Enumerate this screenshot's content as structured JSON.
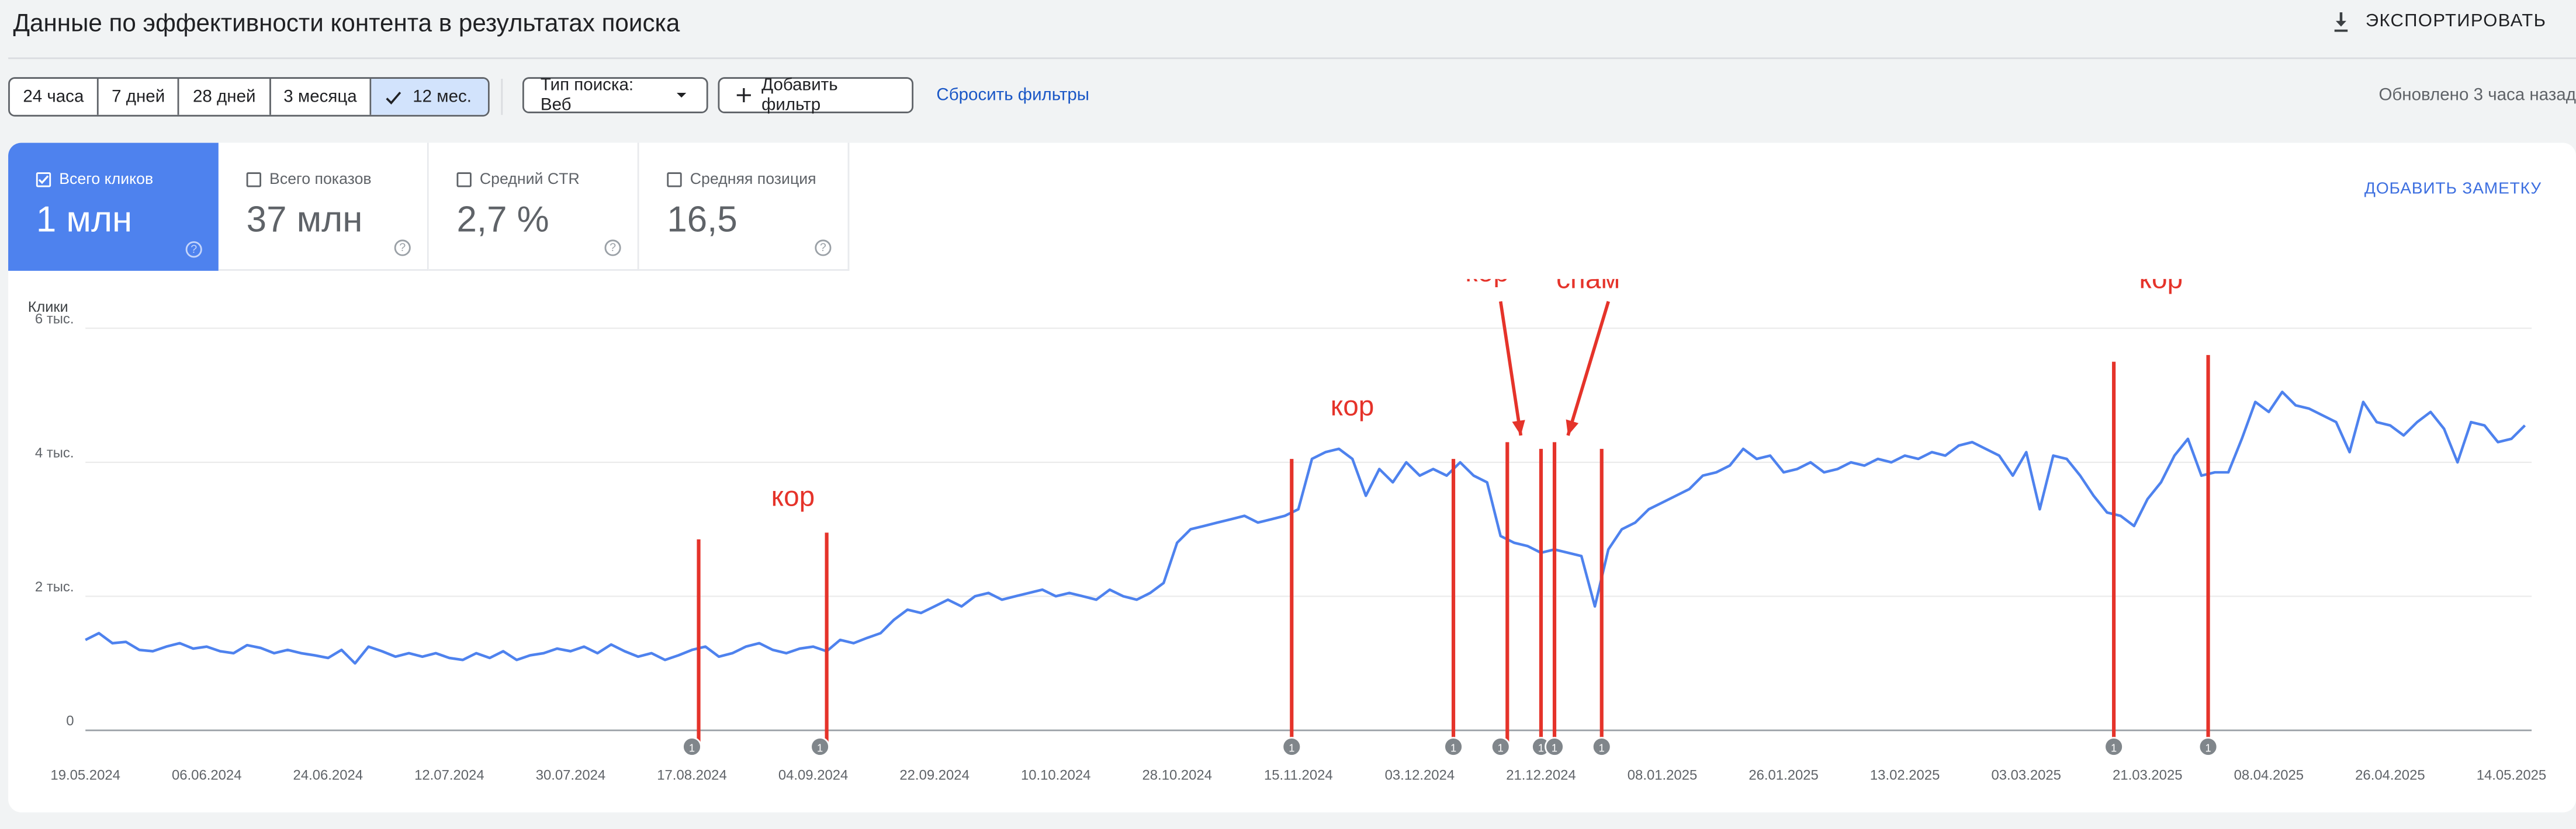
{
  "header": {
    "title": "Данные по эффективности контента в результатах поиска",
    "export_label": "ЭКСПОРТИРОВАТЬ",
    "export_icon": "download-icon"
  },
  "filters": {
    "ranges": [
      {
        "label": "24 часа",
        "active": false
      },
      {
        "label": "7 дней",
        "active": false
      },
      {
        "label": "28 дней",
        "active": false
      },
      {
        "label": "3 месяца",
        "active": false
      },
      {
        "label": "12 мес.",
        "active": true
      }
    ],
    "search_type": "Тип поиска: Веб",
    "add_filter": "Добавить фильтр",
    "reset": "Сбросить фильтры",
    "updated": "Обновлено 3 часа назад"
  },
  "metrics": [
    {
      "label": "Всего кликов",
      "value": "1 млн",
      "active": true
    },
    {
      "label": "Всего показов",
      "value": "37 млн",
      "active": false
    },
    {
      "label": "Средний CTR",
      "value": "2,7 %",
      "active": false
    },
    {
      "label": "Средняя позиция",
      "value": "16,5",
      "active": false
    }
  ],
  "add_note": "ДОБАВИТЬ ЗАМЕТКУ",
  "chart_data": {
    "type": "line",
    "ylabel": "Клики",
    "yticks": [
      {
        "value": 0,
        "label": "0"
      },
      {
        "value": 2000,
        "label": "2 тыс."
      },
      {
        "value": 4000,
        "label": "4 тыс."
      },
      {
        "value": 6000,
        "label": "6 тыс."
      }
    ],
    "ylim": [
      0,
      6000
    ],
    "xlim": [
      "2024-05-19",
      "2025-05-17"
    ],
    "xticks": [
      "19.05.2024",
      "06.06.2024",
      "24.06.2024",
      "12.07.2024",
      "30.07.2024",
      "17.08.2024",
      "04.09.2024",
      "22.09.2024",
      "10.10.2024",
      "28.10.2024",
      "15.11.2024",
      "03.12.2024",
      "21.12.2024",
      "08.01.2025",
      "26.01.2025",
      "13.02.2025",
      "03.03.2025",
      "21.03.2025",
      "08.04.2025",
      "26.04.2025",
      "14.05.2025"
    ],
    "grid": true,
    "color": "#4e82ee",
    "series": [
      {
        "points": [
          [
            "2024-05-19",
            1350
          ],
          [
            "2024-05-21",
            1450
          ],
          [
            "2024-05-23",
            1300
          ],
          [
            "2024-05-25",
            1320
          ],
          [
            "2024-05-27",
            1200
          ],
          [
            "2024-05-29",
            1180
          ],
          [
            "2024-05-31",
            1250
          ],
          [
            "2024-06-02",
            1300
          ],
          [
            "2024-06-04",
            1220
          ],
          [
            "2024-06-06",
            1250
          ],
          [
            "2024-06-08",
            1180
          ],
          [
            "2024-06-10",
            1150
          ],
          [
            "2024-06-12",
            1270
          ],
          [
            "2024-06-14",
            1230
          ],
          [
            "2024-06-16",
            1150
          ],
          [
            "2024-06-18",
            1200
          ],
          [
            "2024-06-20",
            1150
          ],
          [
            "2024-06-22",
            1120
          ],
          [
            "2024-06-24",
            1080
          ],
          [
            "2024-06-26",
            1200
          ],
          [
            "2024-06-28",
            1000
          ],
          [
            "2024-06-30",
            1250
          ],
          [
            "2024-07-02",
            1180
          ],
          [
            "2024-07-04",
            1100
          ],
          [
            "2024-07-06",
            1150
          ],
          [
            "2024-07-08",
            1100
          ],
          [
            "2024-07-10",
            1150
          ],
          [
            "2024-07-12",
            1080
          ],
          [
            "2024-07-14",
            1050
          ],
          [
            "2024-07-16",
            1150
          ],
          [
            "2024-07-18",
            1080
          ],
          [
            "2024-07-20",
            1180
          ],
          [
            "2024-07-22",
            1050
          ],
          [
            "2024-07-24",
            1120
          ],
          [
            "2024-07-26",
            1150
          ],
          [
            "2024-07-28",
            1220
          ],
          [
            "2024-07-30",
            1180
          ],
          [
            "2024-08-01",
            1250
          ],
          [
            "2024-08-03",
            1150
          ],
          [
            "2024-08-05",
            1280
          ],
          [
            "2024-08-07",
            1180
          ],
          [
            "2024-08-09",
            1100
          ],
          [
            "2024-08-11",
            1150
          ],
          [
            "2024-08-13",
            1050
          ],
          [
            "2024-08-15",
            1120
          ],
          [
            "2024-08-17",
            1200
          ],
          [
            "2024-08-19",
            1250
          ],
          [
            "2024-08-21",
            1100
          ],
          [
            "2024-08-23",
            1150
          ],
          [
            "2024-08-25",
            1250
          ],
          [
            "2024-08-27",
            1300
          ],
          [
            "2024-08-29",
            1200
          ],
          [
            "2024-08-31",
            1150
          ],
          [
            "2024-09-02",
            1220
          ],
          [
            "2024-09-04",
            1250
          ],
          [
            "2024-09-06",
            1180
          ],
          [
            "2024-09-08",
            1350
          ],
          [
            "2024-09-10",
            1300
          ],
          [
            "2024-09-12",
            1380
          ],
          [
            "2024-09-14",
            1450
          ],
          [
            "2024-09-16",
            1650
          ],
          [
            "2024-09-18",
            1800
          ],
          [
            "2024-09-20",
            1750
          ],
          [
            "2024-09-22",
            1850
          ],
          [
            "2024-09-24",
            1950
          ],
          [
            "2024-09-26",
            1850
          ],
          [
            "2024-09-28",
            2000
          ],
          [
            "2024-09-30",
            2050
          ],
          [
            "2024-10-02",
            1950
          ],
          [
            "2024-10-04",
            2000
          ],
          [
            "2024-10-06",
            2050
          ],
          [
            "2024-10-08",
            2100
          ],
          [
            "2024-10-10",
            2000
          ],
          [
            "2024-10-12",
            2050
          ],
          [
            "2024-10-14",
            2000
          ],
          [
            "2024-10-16",
            1950
          ],
          [
            "2024-10-18",
            2100
          ],
          [
            "2024-10-20",
            2000
          ],
          [
            "2024-10-22",
            1950
          ],
          [
            "2024-10-24",
            2050
          ],
          [
            "2024-10-26",
            2200
          ],
          [
            "2024-10-28",
            2800
          ],
          [
            "2024-10-30",
            3000
          ],
          [
            "2024-11-01",
            3050
          ],
          [
            "2024-11-03",
            3100
          ],
          [
            "2024-11-05",
            3150
          ],
          [
            "2024-11-07",
            3200
          ],
          [
            "2024-11-09",
            3100
          ],
          [
            "2024-11-11",
            3150
          ],
          [
            "2024-11-13",
            3200
          ],
          [
            "2024-11-15",
            3300
          ],
          [
            "2024-11-17",
            4050
          ],
          [
            "2024-11-19",
            4150
          ],
          [
            "2024-11-21",
            4200
          ],
          [
            "2024-11-23",
            4050
          ],
          [
            "2024-11-25",
            3500
          ],
          [
            "2024-11-27",
            3900
          ],
          [
            "2024-11-29",
            3700
          ],
          [
            "2024-12-01",
            4000
          ],
          [
            "2024-12-03",
            3800
          ],
          [
            "2024-12-05",
            3900
          ],
          [
            "2024-12-07",
            3800
          ],
          [
            "2024-12-09",
            4000
          ],
          [
            "2024-12-11",
            3800
          ],
          [
            "2024-12-13",
            3700
          ],
          [
            "2024-12-15",
            2900
          ],
          [
            "2024-12-17",
            2800
          ],
          [
            "2024-12-19",
            2750
          ],
          [
            "2024-12-21",
            2650
          ],
          [
            "2024-12-23",
            2700
          ],
          [
            "2024-12-25",
            2650
          ],
          [
            "2024-12-27",
            2600
          ],
          [
            "2024-12-29",
            1850
          ],
          [
            "2024-12-31",
            2700
          ],
          [
            "2025-01-02",
            3000
          ],
          [
            "2025-01-04",
            3100
          ],
          [
            "2025-01-06",
            3300
          ],
          [
            "2025-01-08",
            3400
          ],
          [
            "2025-01-10",
            3500
          ],
          [
            "2025-01-12",
            3600
          ],
          [
            "2025-01-14",
            3800
          ],
          [
            "2025-01-16",
            3850
          ],
          [
            "2025-01-18",
            3950
          ],
          [
            "2025-01-20",
            4200
          ],
          [
            "2025-01-22",
            4050
          ],
          [
            "2025-01-24",
            4100
          ],
          [
            "2025-01-26",
            3850
          ],
          [
            "2025-01-28",
            3900
          ],
          [
            "2025-01-30",
            4000
          ],
          [
            "2025-02-01",
            3850
          ],
          [
            "2025-02-03",
            3900
          ],
          [
            "2025-02-05",
            4000
          ],
          [
            "2025-02-07",
            3950
          ],
          [
            "2025-02-09",
            4050
          ],
          [
            "2025-02-11",
            4000
          ],
          [
            "2025-02-13",
            4100
          ],
          [
            "2025-02-15",
            4050
          ],
          [
            "2025-02-17",
            4150
          ],
          [
            "2025-02-19",
            4100
          ],
          [
            "2025-02-21",
            4250
          ],
          [
            "2025-02-23",
            4300
          ],
          [
            "2025-02-25",
            4200
          ],
          [
            "2025-02-27",
            4100
          ],
          [
            "2025-03-01",
            3800
          ],
          [
            "2025-03-03",
            4150
          ],
          [
            "2025-03-05",
            3300
          ],
          [
            "2025-03-07",
            4100
          ],
          [
            "2025-03-09",
            4050
          ],
          [
            "2025-03-11",
            3800
          ],
          [
            "2025-03-13",
            3500
          ],
          [
            "2025-03-15",
            3250
          ],
          [
            "2025-03-17",
            3200
          ],
          [
            "2025-03-19",
            3050
          ],
          [
            "2025-03-21",
            3450
          ],
          [
            "2025-03-23",
            3700
          ],
          [
            "2025-03-25",
            4100
          ],
          [
            "2025-03-27",
            4350
          ],
          [
            "2025-03-29",
            3800
          ],
          [
            "2025-03-31",
            3850
          ],
          [
            "2025-04-02",
            3850
          ],
          [
            "2025-04-04",
            4350
          ],
          [
            "2025-04-06",
            4900
          ],
          [
            "2025-04-08",
            4750
          ],
          [
            "2025-04-10",
            5050
          ],
          [
            "2025-04-12",
            4850
          ],
          [
            "2025-04-14",
            4800
          ],
          [
            "2025-04-16",
            4700
          ],
          [
            "2025-04-18",
            4600
          ],
          [
            "2025-04-20",
            4150
          ],
          [
            "2025-04-22",
            4900
          ],
          [
            "2025-04-24",
            4600
          ],
          [
            "2025-04-26",
            4550
          ],
          [
            "2025-04-28",
            4400
          ],
          [
            "2025-04-30",
            4600
          ],
          [
            "2025-05-02",
            4750
          ],
          [
            "2025-05-04",
            4500
          ],
          [
            "2025-05-06",
            4000
          ],
          [
            "2025-05-08",
            4600
          ],
          [
            "2025-05-10",
            4550
          ],
          [
            "2025-05-12",
            4300
          ],
          [
            "2025-05-14",
            4350
          ],
          [
            "2025-05-16",
            4550
          ]
        ]
      }
    ],
    "event_markers": [
      {
        "date": "2024-08-17",
        "label": "1"
      },
      {
        "date": "2024-09-05",
        "label": "1"
      },
      {
        "date": "2024-11-14",
        "label": "1"
      },
      {
        "date": "2024-12-08",
        "label": "1"
      },
      {
        "date": "2024-12-15",
        "label": "1"
      },
      {
        "date": "2024-12-21",
        "label": "1"
      },
      {
        "date": "2024-12-23",
        "label": "1"
      },
      {
        "date": "2024-12-30",
        "label": "1"
      },
      {
        "date": "2025-03-16",
        "label": "1"
      },
      {
        "date": "2025-03-30",
        "label": "1"
      }
    ],
    "annotations": {
      "color": "#e5332a",
      "lines": [
        {
          "date": "2024-08-18",
          "top": 2850
        },
        {
          "date": "2024-09-06",
          "top": 2950
        },
        {
          "date": "2024-11-14",
          "top": 4050
        },
        {
          "date": "2024-12-08",
          "top": 4050
        },
        {
          "date": "2024-12-16",
          "top": 4300
        },
        {
          "date": "2024-12-21",
          "top": 4200
        },
        {
          "date": "2024-12-23",
          "top": 4300
        },
        {
          "date": "2024-12-30",
          "top": 4200
        },
        {
          "date": "2025-03-16",
          "top": 5500
        },
        {
          "date": "2025-03-30",
          "top": 5600
        }
      ],
      "labels": [
        {
          "text": "кор",
          "date": "2024-09-01",
          "value": 3350
        },
        {
          "text": "кор",
          "date": "2024-11-23",
          "value": 4700
        },
        {
          "text": "кор",
          "date": "2024-12-13",
          "value": 6700
        },
        {
          "text": "спам",
          "date": "2024-12-28",
          "value": 6600
        },
        {
          "text": "кор",
          "date": "2025-03-23",
          "value": 6600
        }
      ],
      "arrows": [
        {
          "from": [
            "2024-12-15",
            6400
          ],
          "to": [
            "2024-12-18",
            4400
          ]
        },
        {
          "from": [
            "2024-12-31",
            6400
          ],
          "to": [
            "2024-12-25",
            4400
          ]
        }
      ]
    }
  }
}
